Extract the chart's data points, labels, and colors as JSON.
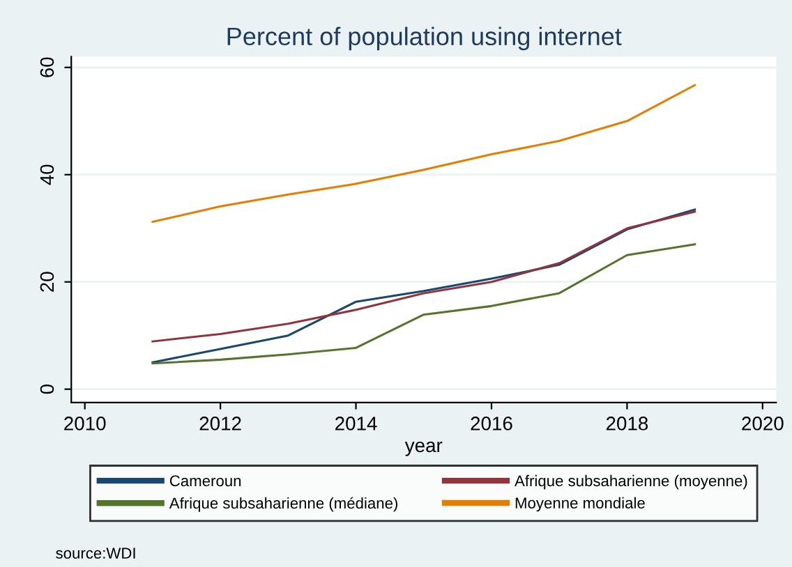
{
  "chart_data": {
    "type": "line",
    "title": "Percent of population using internet",
    "xlabel": "year",
    "x": [
      2011,
      2012,
      2013,
      2014,
      2015,
      2016,
      2017,
      2018,
      2019
    ],
    "xlim": [
      2009.8,
      2020.2
    ],
    "xticks": [
      2010,
      2012,
      2014,
      2016,
      2018,
      2020
    ],
    "ylim": [
      -2.5,
      62
    ],
    "yticks": [
      0,
      20,
      40,
      60
    ],
    "grid": "y",
    "legend": "bottom",
    "marker": "none",
    "line_style": "solid",
    "series": [
      {
        "name": "Cameroun",
        "color": "#1a476f",
        "values": [
          5.0,
          7.5,
          10.0,
          16.3,
          18.3,
          20.6,
          23.2,
          29.8,
          33.5
        ]
      },
      {
        "name": "Afrique subsaharienne (moyenne)",
        "color": "#90353b",
        "values": [
          8.9,
          10.3,
          12.2,
          14.8,
          17.9,
          20.0,
          23.5,
          30.0,
          33.1
        ]
      },
      {
        "name": "Afrique subsaharienne (médiane)",
        "color": "#55752f",
        "values": [
          4.8,
          5.5,
          6.5,
          7.7,
          13.9,
          15.5,
          17.9,
          25.0,
          27.0
        ]
      },
      {
        "name": "Moyenne mondiale",
        "color": "#e37e00",
        "values": [
          31.2,
          34.1,
          36.3,
          38.3,
          40.9,
          43.8,
          46.3,
          50.0,
          56.7
        ]
      }
    ],
    "annotations": [
      "source:WDI"
    ]
  }
}
